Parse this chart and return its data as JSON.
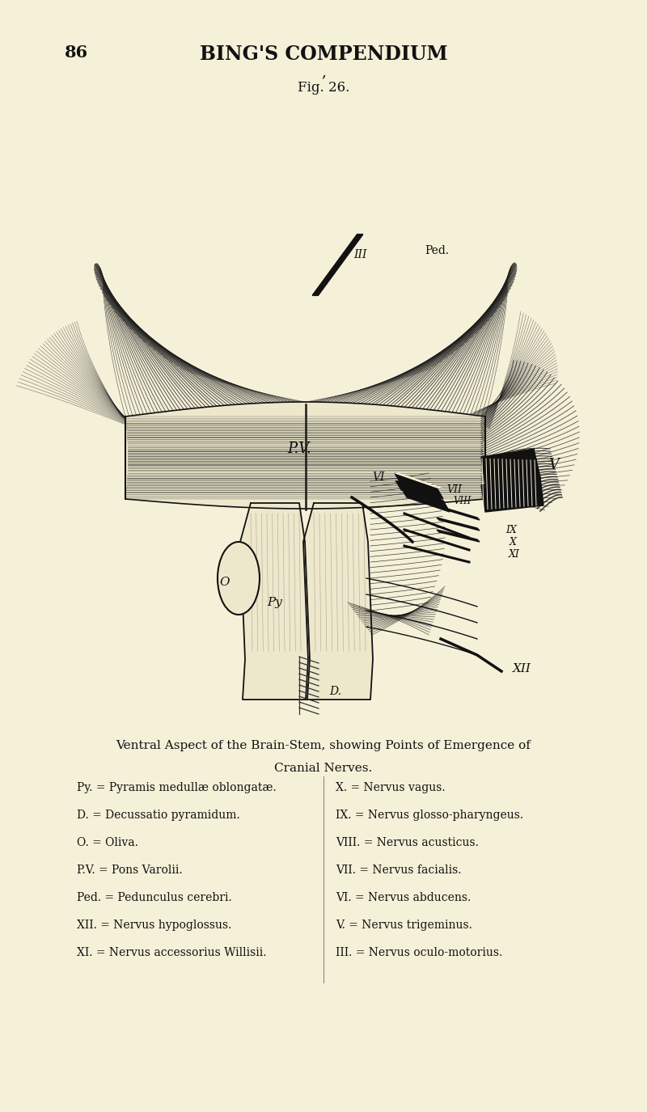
{
  "bg_color": "#f5f0d8",
  "page_number": "86",
  "header_title": "BING'S COMPENDIUM",
  "fig_label": "Fig. 26.",
  "caption_line1": "Ventral Aspect of the Brain-Stem, showing Points of Emergence of",
  "caption_line2": "Cranial Nerves.",
  "legend_left": [
    "Py. = Pyramis medullæ oblongatæ.",
    "D. = Decussatio pyramidum.",
    "O. = Oliva.",
    "P.V. = Pons Varolii.",
    "Ped. = Pedunculus cerebri.",
    "XII. = Nervus hypoglossus.",
    "XI. = Nervus accessorius Willisii."
  ],
  "legend_right": [
    "X. = Nervus vagus.",
    "IX. = Nervus glosso-pharyngeus.",
    "VIII. = Nervus acusticus.",
    "VII. = Nervus facialis.",
    "VI. = Nervus abducens.",
    "V. = Nervus trigeminus.",
    "III. = Nervus oculo-motorius."
  ],
  "text_color": "#111111"
}
